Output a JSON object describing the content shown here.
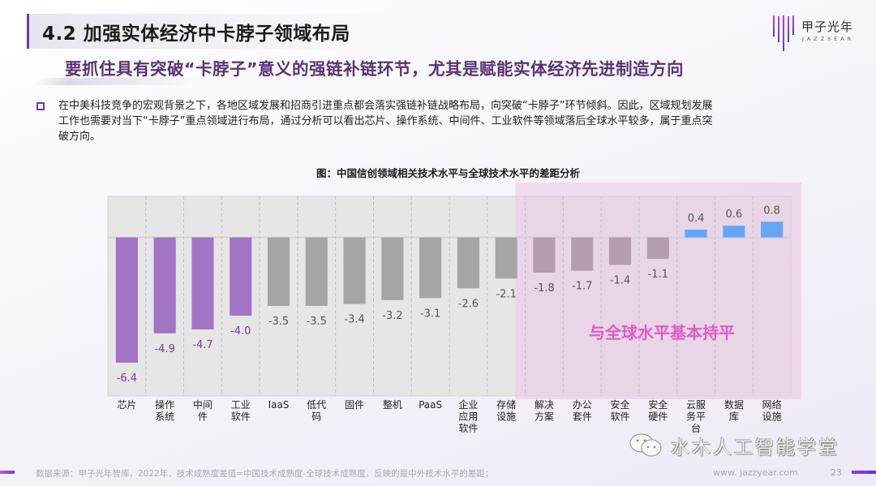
{
  "header": {
    "title": "4.2 加强实体经济中卡脖子领域布局",
    "subtitle": "要抓住具有突破“卡脖子”意义的强链补链环节，尤其是赋能实体经济先进制造方向",
    "logo_name": "甲子光年",
    "logo_sub": "JAZZYEAR"
  },
  "body": {
    "bullet_lines": [
      "在中美科技竞争的宏观背景之下，各地区域发展和招商引进重点都会落实强链补链战略布局，向突破“卡脖子”环节倾斜。因此，区域规划发展",
      "工作也需要对当下“卡脖子”重点领域进行布局，通过分析可以看出芯片、操作系统、中间件、工业软件等领域落后全球水平较多，属于重点突",
      "破方向。"
    ]
  },
  "chart_data": {
    "type": "bar",
    "title": "图：中国信创领域相关技术水平与全球技术水平的差距分析",
    "xlabel": "",
    "ylabel": "",
    "ylim": [
      -8.1,
      2.1
    ],
    "grid": "vertical dashed",
    "categories": [
      [
        "芯片"
      ],
      [
        "操作",
        "系统"
      ],
      [
        "中间",
        "件"
      ],
      [
        "工业",
        "软件"
      ],
      [
        "IaaS"
      ],
      [
        "低代",
        "码"
      ],
      [
        "固件"
      ],
      [
        "整机"
      ],
      [
        "PaaS"
      ],
      [
        "企业",
        "应用",
        "软件"
      ],
      [
        "存储",
        "设施"
      ],
      [
        "解决",
        "方案"
      ],
      [
        "办公",
        "套件"
      ],
      [
        "安全",
        "软件"
      ],
      [
        "安全",
        "硬件"
      ],
      [
        "云服",
        "务平",
        "台"
      ],
      [
        "数据",
        "库"
      ],
      [
        "网络",
        "设施"
      ]
    ],
    "values": [
      -6.4,
      -4.9,
      -4.7,
      -4.0,
      -3.5,
      -3.5,
      -3.4,
      -3.2,
      -3.1,
      -2.6,
      -2.1,
      -1.8,
      -1.7,
      -1.4,
      -1.1,
      0.4,
      0.6,
      0.8
    ],
    "value_labels": [
      "-6.4",
      "-4.9",
      "-4.7",
      "-4.0",
      "-3.5",
      "-3.5",
      "-3.4",
      "-3.2",
      "-3.1",
      "-2.6",
      "-2.1",
      "-1.8",
      "-1.7",
      "-1.4",
      "-1.1",
      "0.4",
      "0.6",
      "0.8"
    ],
    "groups": [
      "key",
      "key",
      "key",
      "key",
      "mid",
      "mid",
      "mid",
      "mid",
      "mid",
      "mid",
      "mid",
      "par",
      "par",
      "par",
      "par",
      "ahead",
      "ahead",
      "ahead"
    ],
    "colors": {
      "key": "#a374c6",
      "mid": "#a5a5a5",
      "par": "#b39ead",
      "ahead": "#64a6f5",
      "key_label": "#7a3a9c",
      "other_label": "#555555",
      "highlight_fill": "#e9c6e6",
      "highlight_text": "#e05cc8"
    },
    "highlight": {
      "from_category_index": 11,
      "to_category_index": 17,
      "label": "与全球水平基本持平"
    }
  },
  "footer": {
    "source": "数据来源：甲子光年智库，2022年，技术成熟度差值=中国技术成熟度-全球技术成熟度，反映的是中外技术水平的差距；",
    "url": "www. jazzyear.com",
    "page": "23",
    "watermark": "水木人工智能学堂"
  }
}
